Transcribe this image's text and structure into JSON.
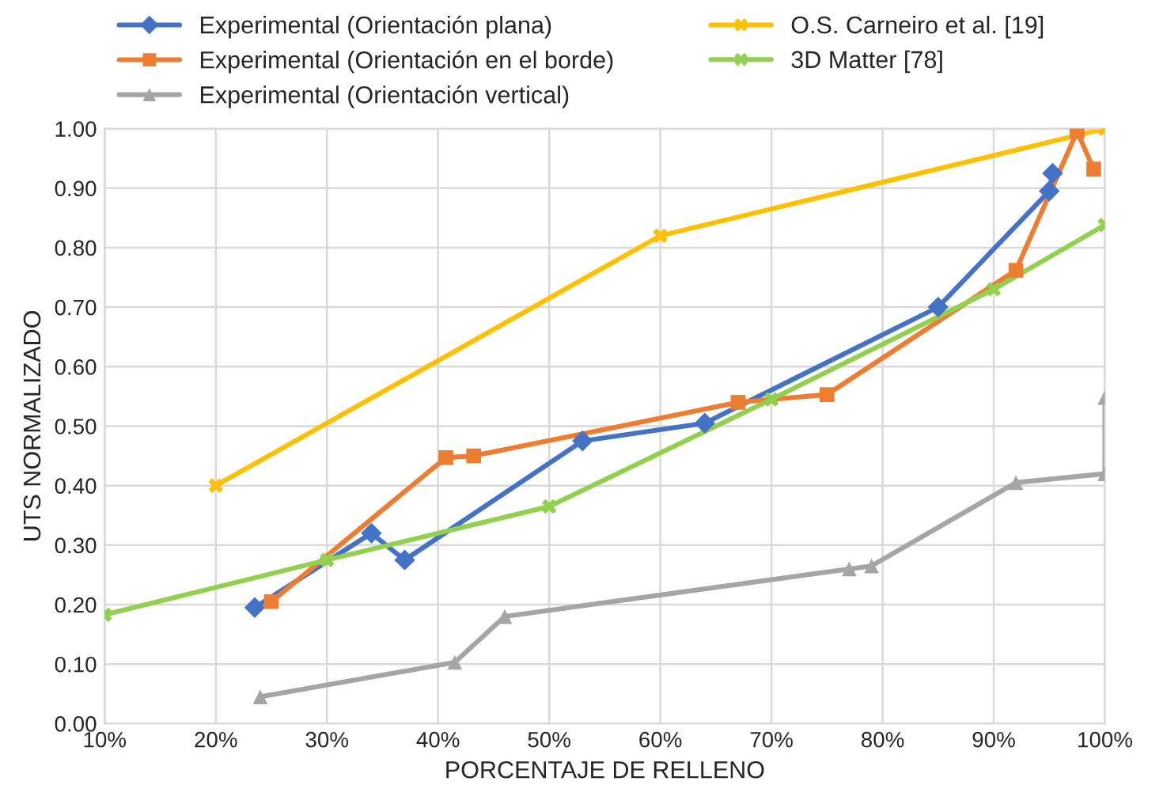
{
  "chart_data": {
    "type": "line",
    "xlabel": "PORCENTAJE DE RELLENO",
    "ylabel": "UTS NORMALIZADO",
    "series": [
      {
        "name": "Experimental (Orientación plana)",
        "color": "#4472c4",
        "marker": "diamond",
        "x": [
          23.5,
          34,
          37,
          53,
          64,
          85,
          95,
          95.3
        ],
        "values": [
          0.195,
          0.32,
          0.275,
          0.475,
          0.505,
          0.7,
          0.895,
          0.925
        ]
      },
      {
        "name": "Experimental (Orientación en el borde)",
        "color": "#ed7d31",
        "marker": "square",
        "x": [
          25,
          40.7,
          43.2,
          67,
          75,
          92,
          97.5,
          99
        ],
        "values": [
          0.205,
          0.447,
          0.45,
          0.54,
          0.553,
          0.762,
          0.995,
          0.932
        ]
      },
      {
        "name": "Experimental (Orientación vertical)",
        "color": "#a5a5a5",
        "marker": "triangle",
        "x": [
          24,
          41.5,
          46,
          77,
          79,
          92,
          100,
          100
        ],
        "values": [
          0.045,
          0.103,
          0.18,
          0.26,
          0.265,
          0.405,
          0.42,
          0.548
        ]
      },
      {
        "name": "O.S. Carneiro et al. [19]",
        "color": "#ffc000",
        "marker": "cross",
        "x": [
          20,
          60,
          100
        ],
        "values": [
          0.4,
          0.82,
          1.0
        ]
      },
      {
        "name": "3D Matter [78]",
        "color": "#92d050",
        "marker": "cross",
        "x": [
          10,
          30,
          50,
          70,
          90,
          100
        ],
        "values": [
          0.183,
          0.275,
          0.365,
          0.545,
          0.73,
          0.838
        ]
      }
    ],
    "xlim": [
      10,
      100
    ],
    "ylim": [
      0,
      1
    ],
    "xticks": [
      {
        "value": 10,
        "label": "10%"
      },
      {
        "value": 20,
        "label": "20%"
      },
      {
        "value": 30,
        "label": "30%"
      },
      {
        "value": 40,
        "label": "40%"
      },
      {
        "value": 50,
        "label": "50%"
      },
      {
        "value": 60,
        "label": "60%"
      },
      {
        "value": 70,
        "label": "70%"
      },
      {
        "value": 80,
        "label": "80%"
      },
      {
        "value": 90,
        "label": "90%"
      },
      {
        "value": 100,
        "label": "100%"
      }
    ],
    "yticks": [
      {
        "value": 0,
        "label": "0.00"
      },
      {
        "value": 0.1,
        "label": "0.10"
      },
      {
        "value": 0.2,
        "label": "0.20"
      },
      {
        "value": 0.3,
        "label": "0.30"
      },
      {
        "value": 0.4,
        "label": "0.40"
      },
      {
        "value": 0.5,
        "label": "0.50"
      },
      {
        "value": 0.6,
        "label": "0.60"
      },
      {
        "value": 0.7,
        "label": "0.70"
      },
      {
        "value": 0.8,
        "label": "0.80"
      },
      {
        "value": 0.9,
        "label": "0.90"
      },
      {
        "value": 1.0,
        "label": "1.00"
      }
    ],
    "grid": true,
    "legend": "top",
    "line_style": "solid"
  }
}
